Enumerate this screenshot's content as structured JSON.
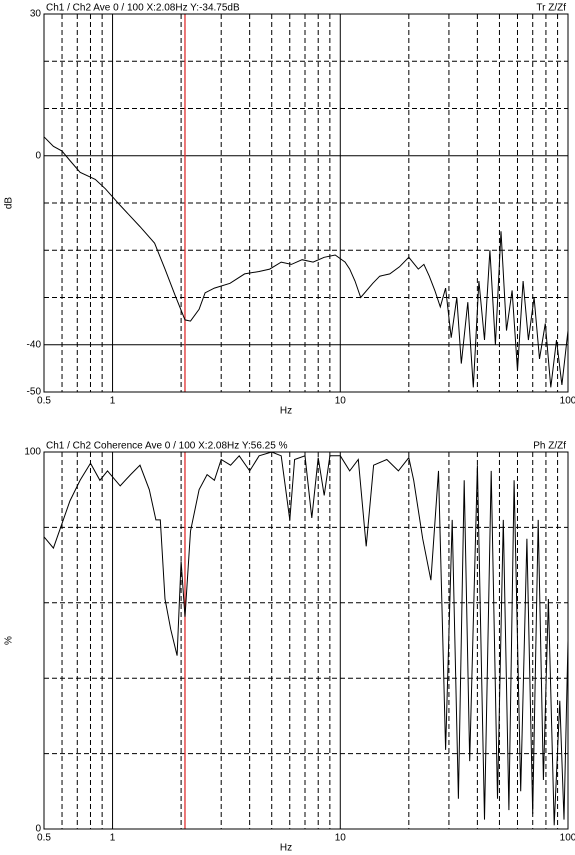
{
  "chart_data": [
    {
      "type": "line",
      "title": "Ch1 / Ch2  Ave 0 / 100  X:2.08Hz  Y:-34.75dB",
      "subtitle": "Tr Z/Zf",
      "x_label": "Hz",
      "y_label": "dB",
      "log_x": true,
      "color": "#000000",
      "cursor_x": 2.08,
      "cursor_color": "#e03030",
      "xlim": [
        0.5,
        100
      ],
      "xticks": [
        0.5,
        1,
        10,
        100
      ],
      "xminor": [
        0.6,
        0.7,
        0.8,
        0.9,
        2,
        3,
        4,
        5,
        6,
        7,
        8,
        9,
        20,
        30,
        40,
        50,
        60,
        70,
        80,
        90
      ],
      "ylim": [
        -50,
        30
      ],
      "yticks": [
        30,
        0,
        -40,
        -50
      ],
      "yminor": [
        20,
        10,
        -10,
        -20,
        -30
      ],
      "x": [
        0.5,
        0.55,
        0.6,
        0.65,
        0.72,
        0.84,
        0.93,
        1.08,
        1.32,
        1.53,
        1.7,
        1.88,
        2.08,
        2.2,
        2.4,
        2.55,
        2.8,
        3.28,
        3.8,
        4.4,
        4.9,
        5.5,
        6.1,
        6.8,
        7.6,
        8.5,
        9.5,
        10.5,
        11,
        11.6,
        12.3,
        13.9,
        14.9,
        16.5,
        18.2,
        20,
        22,
        23.3,
        24.6,
        26,
        27.5,
        29,
        30.7,
        32.5,
        34,
        36.3,
        38.4,
        40.6,
        43,
        45.4,
        48,
        50.8,
        53.7,
        56.8,
        60,
        63.5,
        67,
        71,
        75,
        79.5,
        84,
        89,
        94,
        100
      ],
      "values": [
        4,
        2,
        1,
        -1,
        -3.5,
        -5,
        -7,
        -10.5,
        -15,
        -18.5,
        -24,
        -29.5,
        -34.75,
        -35,
        -32.5,
        -29,
        -28,
        -27,
        -25,
        -24.5,
        -24,
        -22.5,
        -23,
        -22,
        -22.5,
        -21.5,
        -21,
        -22.5,
        -24,
        -26.5,
        -30,
        -27,
        -25.5,
        -25,
        -23.5,
        -21.5,
        -24,
        -23,
        -25.5,
        -28.5,
        -32,
        -28,
        -38.5,
        -30,
        -44,
        -31,
        -49,
        -26.5,
        -39,
        -20,
        -40,
        -16,
        -37,
        -28.5,
        -45.5,
        -26.5,
        -39,
        -30,
        -43,
        -35.5,
        -49,
        -39,
        -48.5,
        -37
      ]
    },
    {
      "type": "line",
      "title": "Ch1 / Ch2  Coherence Ave 0 / 100  X:2.08Hz  Y:56.25 %",
      "subtitle": "Ph Z/Zf",
      "x_label": "Hz",
      "y_label": "%",
      "log_x": true,
      "color": "#000000",
      "cursor_x": 2.08,
      "cursor_color": "#e03030",
      "xlim": [
        0.5,
        100
      ],
      "xticks": [
        0.5,
        1,
        10,
        100
      ],
      "xminor": [
        0.6,
        0.7,
        0.8,
        0.9,
        2,
        3,
        4,
        5,
        6,
        7,
        8,
        9,
        20,
        30,
        40,
        50,
        60,
        70,
        80,
        90
      ],
      "ylim": [
        0,
        100
      ],
      "yticks": [
        100,
        0
      ],
      "yminor": [
        80,
        60,
        40,
        20
      ],
      "x": [
        0.5,
        0.55,
        0.65,
        0.72,
        0.8,
        0.88,
        0.95,
        1.08,
        1.2,
        1.32,
        1.45,
        1.55,
        1.62,
        1.7,
        1.8,
        1.92,
        2.0,
        2.08,
        2.2,
        2.4,
        2.6,
        2.8,
        3,
        3.3,
        3.6,
        4,
        4.4,
        5,
        5.5,
        6,
        6.3,
        7,
        7.5,
        8,
        8.5,
        9,
        10,
        11,
        12,
        13,
        14,
        16,
        18,
        20,
        21,
        23,
        25,
        27,
        29,
        31,
        33,
        35,
        37,
        40,
        43,
        46,
        49,
        52,
        55,
        58,
        62,
        66,
        70,
        74,
        78,
        82,
        87,
        92,
        96,
        100
      ],
      "values": [
        77.5,
        74.5,
        87,
        92.5,
        97,
        92.5,
        95,
        91,
        94,
        96.5,
        90,
        82,
        82,
        61,
        53,
        46,
        71,
        56.25,
        79,
        90,
        94,
        92.5,
        98,
        96.5,
        99,
        95,
        99,
        100,
        99,
        82,
        98,
        99,
        82.5,
        98.5,
        88.5,
        99,
        99,
        95,
        98,
        75,
        96.5,
        98,
        95,
        98.5,
        92.5,
        77,
        66,
        95,
        21,
        82,
        8,
        92.5,
        18,
        96.5,
        2.5,
        95,
        8,
        82,
        5,
        92.5,
        10,
        77,
        4,
        82,
        13,
        61,
        1,
        34,
        2.5,
        50
      ]
    }
  ]
}
